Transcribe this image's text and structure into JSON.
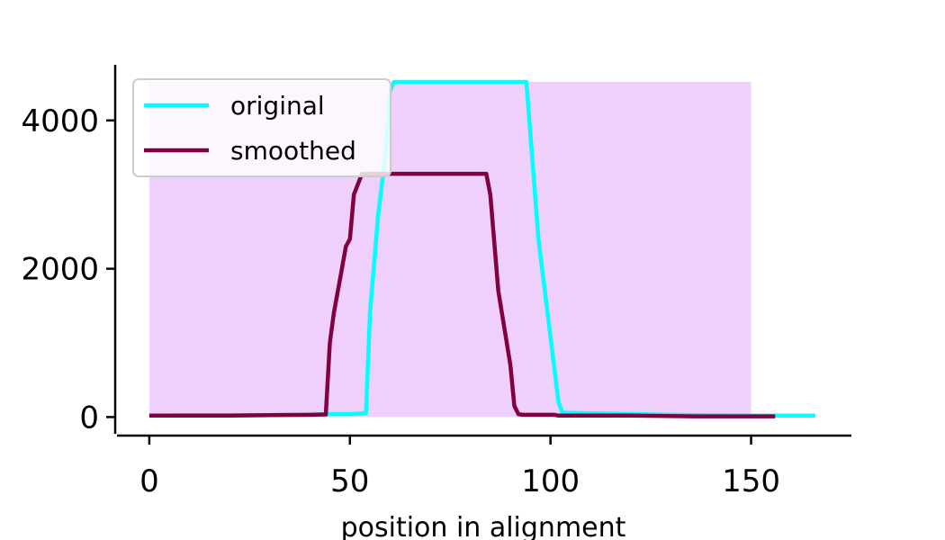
{
  "chart_data": {
    "type": "line",
    "title": "",
    "xlabel": "position in alignment",
    "ylabel": "",
    "xlim": [
      -8.5,
      175
    ],
    "ylim": [
      -250,
      4750
    ],
    "xticks": [
      0,
      50,
      100,
      150
    ],
    "yticks": [
      0,
      2000,
      4000
    ],
    "tick_labels_x": [
      "0",
      "50",
      "100",
      "150"
    ],
    "tick_labels_y": [
      "0",
      "2000",
      "4000"
    ],
    "grid": false,
    "legend": {
      "placement": "top-left"
    },
    "shaded_region": {
      "x": [
        0,
        150
      ],
      "y": [
        0,
        4520
      ],
      "color": "#efd0fc"
    },
    "series": [
      {
        "name": "original",
        "color": "#00ffff",
        "x": [
          0,
          30,
          40,
          44,
          50,
          54,
          55,
          57,
          59,
          60,
          61,
          93,
          94,
          97,
          102,
          103,
          110,
          130,
          150,
          166
        ],
        "y": [
          20,
          25,
          30,
          40,
          40,
          50,
          1400,
          2700,
          3600,
          4400,
          4520,
          4520,
          4520,
          2400,
          200,
          60,
          50,
          30,
          20,
          20
        ]
      },
      {
        "name": "smoothed",
        "color": "#800040",
        "x": [
          0,
          20,
          30,
          40,
          44,
          45,
          46,
          47,
          48,
          49,
          50,
          51,
          53,
          60,
          70,
          80,
          84,
          85,
          87,
          90,
          91,
          92,
          93,
          100,
          101,
          102,
          110,
          120,
          136,
          156
        ],
        "y": [
          20,
          20,
          25,
          30,
          35,
          1000,
          1400,
          1700,
          2000,
          2300,
          2400,
          3000,
          3280,
          3280,
          3280,
          3280,
          3280,
          3000,
          1700,
          700,
          150,
          40,
          30,
          30,
          30,
          20,
          20,
          20,
          10,
          10
        ]
      }
    ]
  }
}
